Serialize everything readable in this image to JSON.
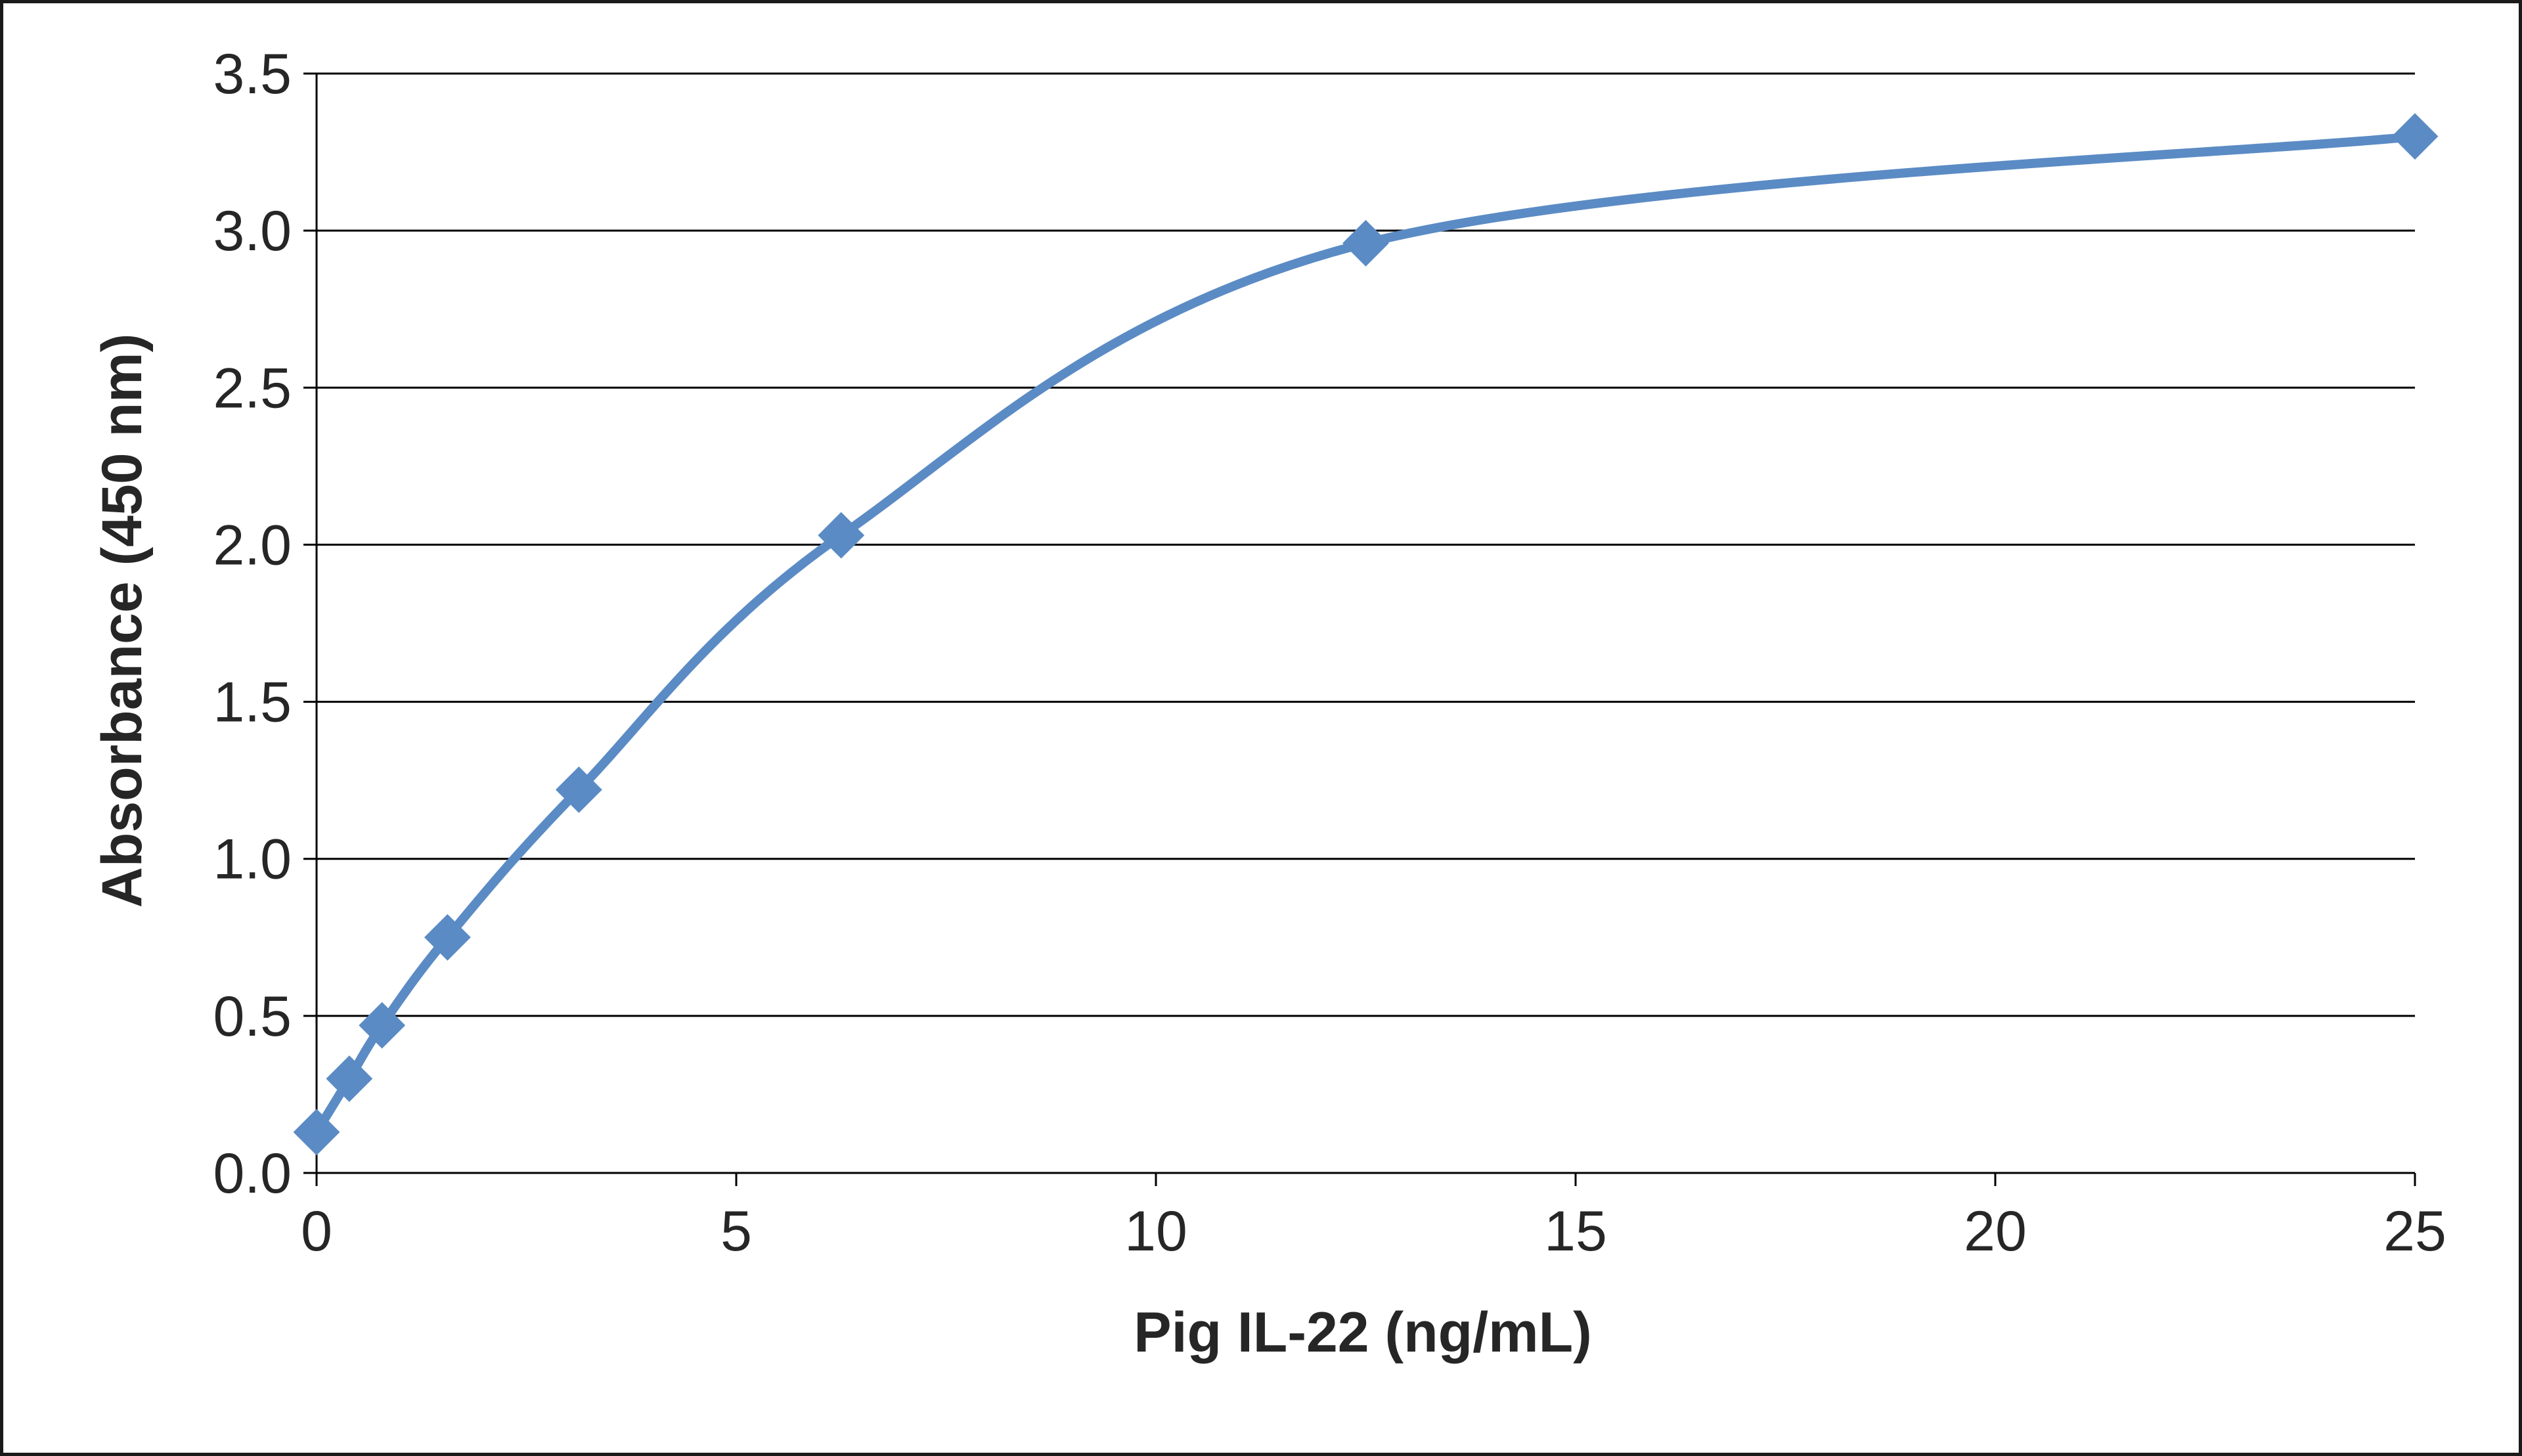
{
  "chart_data": {
    "type": "line",
    "title": "",
    "xlabel": "Pig IL-22 (ng/mL)",
    "ylabel": "Absorbance  (450  nm)",
    "xlim": [
      0,
      25
    ],
    "ylim": [
      0,
      3.5
    ],
    "x_ticks": [
      "0",
      "5",
      "10",
      "15",
      "20",
      "25"
    ],
    "y_ticks": [
      "0.0",
      "0.5",
      "1.0",
      "1.5",
      "2.0",
      "2.5",
      "3.0",
      "3.5"
    ],
    "grid": "horizontal",
    "legend": "none",
    "marker": "diamond",
    "smooth": true,
    "color": "#5B8BC4",
    "series": [
      {
        "x": [
          0,
          0.39,
          0.78,
          1.56,
          3.125,
          6.25,
          12.5,
          25
        ],
        "y": [
          0.13,
          0.3,
          0.47,
          0.75,
          1.22,
          2.03,
          2.96,
          3.3
        ]
      }
    ]
  }
}
